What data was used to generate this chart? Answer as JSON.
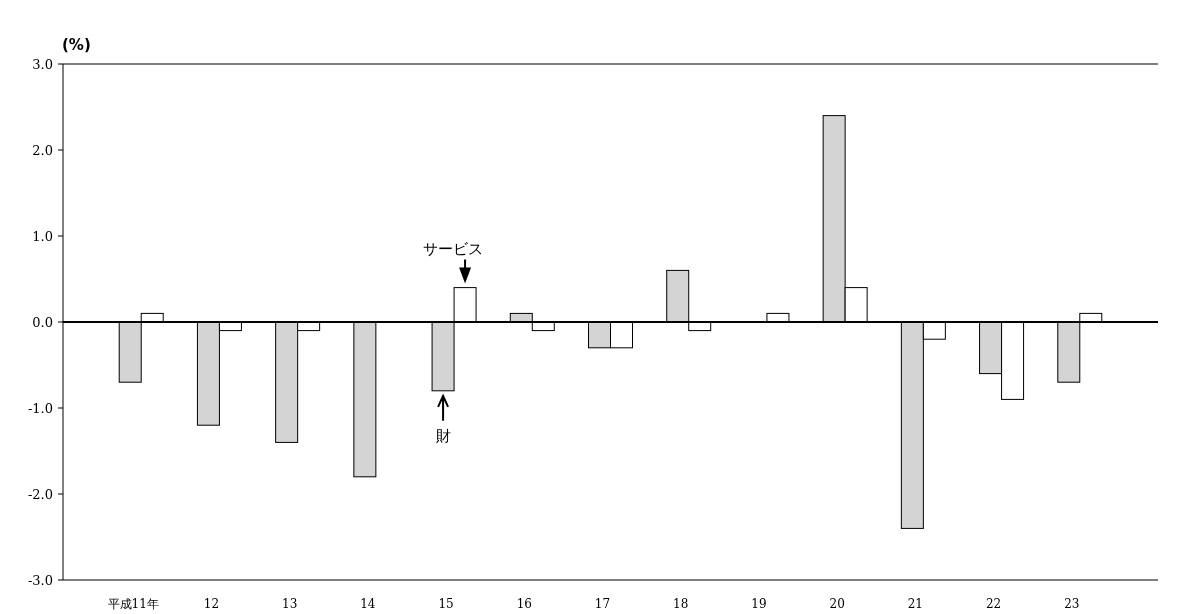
{
  "chart_data": {
    "type": "bar",
    "ylabel": "(%)",
    "categories": [
      "平成11年",
      "12",
      "13",
      "14",
      "15",
      "16",
      "17",
      "18",
      "19",
      "20",
      "21",
      "22",
      "23"
    ],
    "series": [
      {
        "name": "財",
        "color": "#d4d4d4",
        "values": [
          -0.7,
          -1.2,
          -1.4,
          -1.8,
          -0.8,
          0.1,
          -0.3,
          0.6,
          0,
          2.4,
          -2.4,
          -0.6,
          -0.7
        ]
      },
      {
        "name": "サービス",
        "color": "#ffffff",
        "values": [
          0.1,
          -0.1,
          -0.1,
          0,
          0.4,
          -0.1,
          -0.3,
          -0.1,
          0.1,
          0.4,
          -0.2,
          -0.9,
          0.1
        ]
      }
    ],
    "ylim": [
      -3,
      3
    ],
    "yticks": [
      {
        "value": -3,
        "label": "-3.0"
      },
      {
        "value": -2,
        "label": "-2.0"
      },
      {
        "value": -1,
        "label": "-1.0"
      },
      {
        "value": 0,
        "label": "0.0"
      },
      {
        "value": 1,
        "label": "1.0"
      },
      {
        "value": 2,
        "label": "2.0"
      },
      {
        "value": 3,
        "label": "3.0"
      }
    ]
  }
}
